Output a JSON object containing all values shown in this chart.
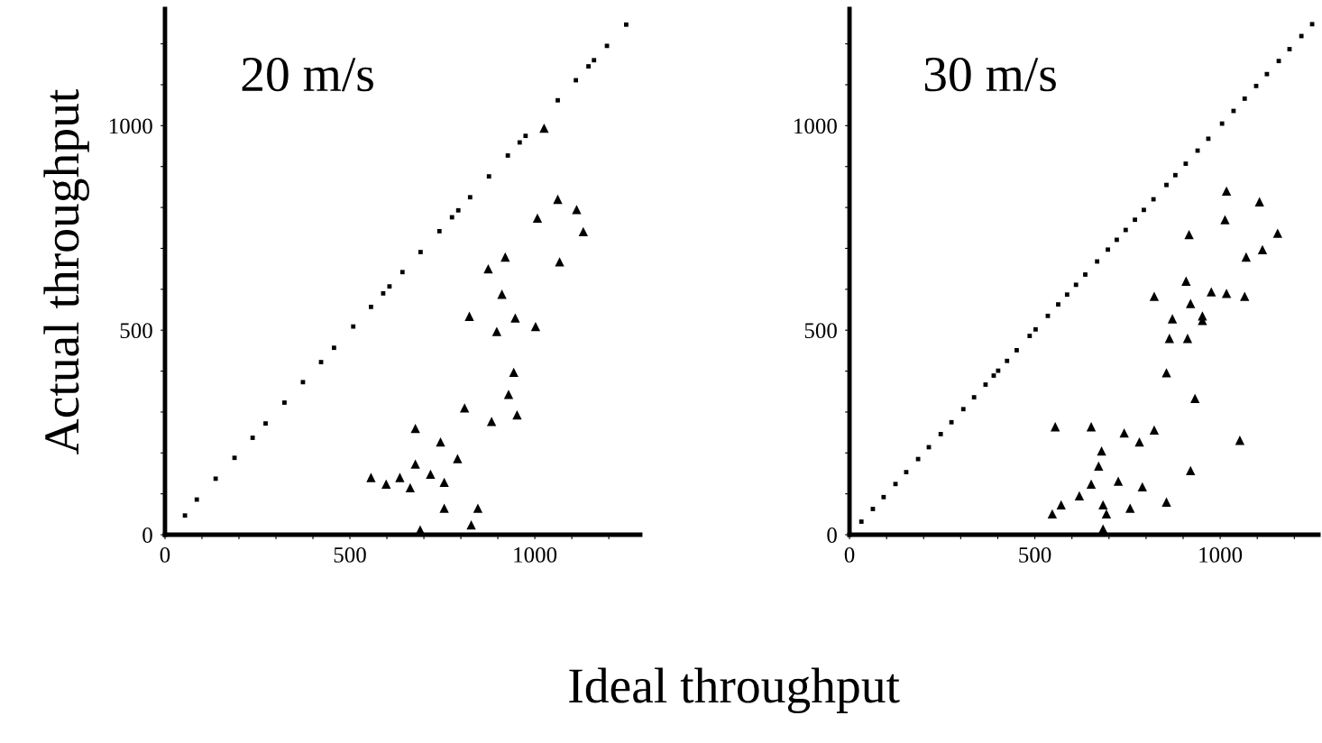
{
  "chart_data": [
    {
      "type": "scatter",
      "title": "20 m/s",
      "ylabel": "Actual throughput",
      "xlabel": "Ideal throughput",
      "xlim": [
        0,
        1285
      ],
      "ylim": [
        0,
        1285
      ],
      "xticks": [
        0,
        {
          "value": 100,
          "label": null
        },
        {
          "value": 200,
          "label": null
        },
        {
          "value": 300,
          "label": null
        },
        {
          "value": 400,
          "label": null
        },
        500,
        {
          "value": 600,
          "label": null
        },
        {
          "value": 700,
          "label": null
        },
        {
          "value": 800,
          "label": null
        },
        {
          "value": 900,
          "label": null
        },
        1000,
        {
          "value": 1100,
          "label": null
        },
        {
          "value": 1200,
          "label": null
        }
      ],
      "yticks": [
        0,
        {
          "value": 100,
          "label": null
        },
        {
          "value": 200,
          "label": null
        },
        {
          "value": 300,
          "label": null
        },
        {
          "value": 400,
          "label": null
        },
        500,
        {
          "value": 600,
          "label": null
        },
        {
          "value": 700,
          "label": null
        },
        {
          "value": 800,
          "label": null
        },
        {
          "value": 900,
          "label": null
        },
        1000,
        {
          "value": 1100,
          "label": null
        },
        {
          "value": 1200,
          "label": null
        }
      ],
      "grid": false,
      "series": [
        {
          "color": "#000000",
          "marker": "square",
          "x": [
            54,
            86,
            137,
            188,
            237,
            272,
            323,
            373,
            422,
            457,
            509,
            557,
            590,
            607,
            642,
            691,
            742,
            776,
            793,
            825,
            876,
            927,
            959,
            975,
            1062,
            1111,
            1145,
            1160,
            1195,
            1247
          ],
          "values": [
            47,
            86,
            137,
            188,
            237,
            272,
            323,
            373,
            422,
            457,
            509,
            557,
            590,
            607,
            642,
            691,
            742,
            776,
            793,
            825,
            876,
            927,
            959,
            975,
            1062,
            1111,
            1145,
            1160,
            1195,
            1247
          ]
        },
        {
          "color": "#000000",
          "marker": "triangle",
          "x": [
            1025,
            1062,
            1007,
            1113,
            1131,
            920,
            874,
            1067,
            911,
            823,
            897,
            947,
            1002,
            943,
            929,
            810,
            883,
            952,
            677,
            745,
            791,
            677,
            718,
            755,
            557,
            598,
            663,
            755,
            846,
            828,
            690,
            635
          ],
          "values": [
            994,
            820,
            774,
            795,
            741,
            679,
            650,
            667,
            588,
            534,
            497,
            530,
            509,
            397,
            343,
            310,
            277,
            293,
            260,
            227,
            186,
            173,
            148,
            128,
            140,
            124,
            115,
            65,
            65,
            24,
            12,
            140
          ]
        }
      ]
    },
    {
      "type": "scatter",
      "title": "30 m/s",
      "xlim": [
        0,
        1265
      ],
      "ylim": [
        0,
        1285
      ],
      "xticks": [
        0,
        {
          "value": 100,
          "label": null
        },
        {
          "value": 200,
          "label": null
        },
        {
          "value": 300,
          "label": null
        },
        {
          "value": 400,
          "label": null
        },
        500,
        {
          "value": 600,
          "label": null
        },
        {
          "value": 700,
          "label": null
        },
        {
          "value": 800,
          "label": null
        },
        {
          "value": 900,
          "label": null
        },
        1000,
        {
          "value": 1100,
          "label": null
        },
        {
          "value": 1200,
          "label": null
        }
      ],
      "yticks": [
        0,
        {
          "value": 100,
          "label": null
        },
        {
          "value": 200,
          "label": null
        },
        {
          "value": 300,
          "label": null
        },
        {
          "value": 400,
          "label": null
        },
        500,
        {
          "value": 600,
          "label": null
        },
        {
          "value": 700,
          "label": null
        },
        {
          "value": 800,
          "label": null
        },
        {
          "value": 900,
          "label": null
        },
        1000,
        {
          "value": 1100,
          "label": null
        },
        {
          "value": 1200,
          "label": null
        }
      ],
      "grid": false,
      "series": [
        {
          "color": "#000000",
          "marker": "square",
          "x": [
            32,
            63,
            92,
            124,
            153,
            185,
            214,
            246,
            275,
            307,
            336,
            367,
            389,
            401,
            425,
            451,
            486,
            502,
            535,
            563,
            587,
            611,
            636,
            668,
            697,
            721,
            745,
            770,
            794,
            820,
            855,
            879,
            907,
            939,
            968,
            1005,
            1036,
            1066,
            1097,
            1126,
            1158,
            1187,
            1219,
            1248
          ],
          "values": [
            32,
            63,
            92,
            124,
            153,
            185,
            214,
            246,
            275,
            307,
            336,
            367,
            389,
            401,
            425,
            451,
            486,
            502,
            535,
            563,
            587,
            611,
            636,
            668,
            697,
            721,
            745,
            770,
            794,
            820,
            855,
            879,
            907,
            939,
            968,
            1005,
            1036,
            1066,
            1097,
            1126,
            1158,
            1187,
            1219,
            1248
          ]
        },
        {
          "color": "#000000",
          "marker": "triangle",
          "x": [
            1017,
            1106,
            1013,
            916,
            1155,
            1114,
            1070,
            908,
            822,
            976,
            1017,
            1066,
            920,
            952,
            871,
            952,
            863,
            912,
            855,
            932,
            555,
            652,
            741,
            822,
            782,
            1053,
            680,
            672,
            920,
            725,
            790,
            652,
            620,
            571,
            684,
            757,
            855,
            547,
            684,
            693
          ],
          "values": [
            840,
            814,
            770,
            734,
            737,
            697,
            679,
            620,
            583,
            594,
            590,
            583,
            565,
            535,
            528,
            524,
            480,
            480,
            396,
            333,
            264,
            264,
            249,
            256,
            227,
            231,
            205,
            168,
            157,
            131,
            117,
            124,
            95,
            73,
            73,
            65,
            80,
            51,
            14,
            51
          ]
        }
      ]
    }
  ]
}
